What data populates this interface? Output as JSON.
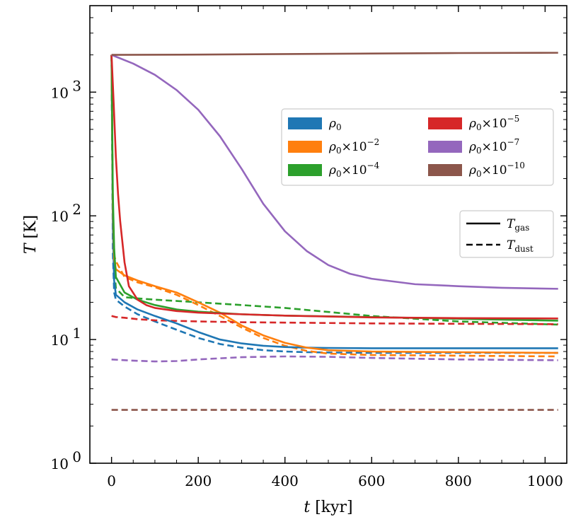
{
  "chart_data": {
    "type": "line",
    "title": "",
    "xlabel": "t",
    "xlabel_unit": "[kyr]",
    "ylabel": "T",
    "ylabel_unit": "[K]",
    "xlim": [
      -50,
      1050
    ],
    "ylim": [
      1,
      5000
    ],
    "yscale": "log",
    "x_ticks": [
      0,
      200,
      400,
      600,
      800,
      1000
    ],
    "x_tick_labels": [
      "0",
      "200",
      "400",
      "600",
      "800",
      "1000"
    ],
    "y_ticks": [
      1,
      10,
      100,
      1000
    ],
    "y_tick_labels": [
      {
        "base": "10",
        "exp": "0"
      },
      {
        "base": "10",
        "exp": "1"
      },
      {
        "base": "10",
        "exp": "2"
      },
      {
        "base": "10",
        "exp": "3"
      }
    ],
    "grid": false,
    "series": [
      {
        "name": "ρ0",
        "label_base": "ρ",
        "label_sub": "0",
        "label_mult": "",
        "label_exp": "",
        "color": "#1f77b4",
        "gas": [
          [
            0,
            2000
          ],
          [
            3,
            80
          ],
          [
            6,
            30
          ],
          [
            10,
            23
          ],
          [
            30,
            20
          ],
          [
            60,
            17.5
          ],
          [
            100,
            15.5
          ],
          [
            150,
            13.5
          ],
          [
            200,
            11.5
          ],
          [
            250,
            10
          ],
          [
            300,
            9.3
          ],
          [
            350,
            8.9
          ],
          [
            400,
            8.7
          ],
          [
            450,
            8.6
          ],
          [
            500,
            8.55
          ],
          [
            600,
            8.5
          ],
          [
            800,
            8.5
          ],
          [
            1030,
            8.5
          ]
        ],
        "dust": [
          [
            0,
            2000
          ],
          [
            3,
            50
          ],
          [
            6,
            24
          ],
          [
            10,
            21
          ],
          [
            30,
            18.5
          ],
          [
            60,
            16
          ],
          [
            100,
            14
          ],
          [
            150,
            12
          ],
          [
            200,
            10.3
          ],
          [
            250,
            9.2
          ],
          [
            300,
            8.6
          ],
          [
            350,
            8.2
          ],
          [
            400,
            8
          ],
          [
            450,
            7.9
          ],
          [
            500,
            7.85
          ],
          [
            600,
            7.8
          ],
          [
            800,
            7.8
          ],
          [
            1030,
            7.8
          ]
        ]
      },
      {
        "name": "ρ0×10^-2",
        "label_base": "ρ",
        "label_sub": "0",
        "label_mult": "×10",
        "label_exp": "−2",
        "color": "#ff7f0e",
        "gas": [
          [
            0,
            2000
          ],
          [
            3,
            120
          ],
          [
            6,
            45
          ],
          [
            10,
            37
          ],
          [
            30,
            33
          ],
          [
            60,
            30
          ],
          [
            100,
            27
          ],
          [
            150,
            24
          ],
          [
            200,
            20
          ],
          [
            250,
            16.5
          ],
          [
            300,
            13
          ],
          [
            350,
            10.8
          ],
          [
            400,
            9.4
          ],
          [
            450,
            8.6
          ],
          [
            500,
            8.2
          ],
          [
            600,
            8
          ],
          [
            800,
            7.9
          ],
          [
            1030,
            7.8
          ]
        ],
        "dust": [
          [
            0,
            2000
          ],
          [
            3,
            100
          ],
          [
            6,
            48
          ],
          [
            10,
            43
          ],
          [
            30,
            32
          ],
          [
            60,
            29
          ],
          [
            100,
            26.5
          ],
          [
            150,
            23
          ],
          [
            200,
            19
          ],
          [
            250,
            15.5
          ],
          [
            300,
            12.5
          ],
          [
            350,
            10.3
          ],
          [
            400,
            8.9
          ],
          [
            450,
            8.1
          ],
          [
            500,
            7.7
          ],
          [
            600,
            7.5
          ],
          [
            800,
            7.4
          ],
          [
            1030,
            7.3
          ]
        ]
      },
      {
        "name": "ρ0×10^-4",
        "label_base": "ρ",
        "label_sub": "0",
        "label_mult": "×10",
        "label_exp": "−4",
        "color": "#2ca02c",
        "gas": [
          [
            0,
            2000
          ],
          [
            3,
            150
          ],
          [
            6,
            55
          ],
          [
            10,
            32
          ],
          [
            30,
            24
          ],
          [
            60,
            21
          ],
          [
            100,
            19
          ],
          [
            150,
            17.5
          ],
          [
            200,
            16.8
          ],
          [
            300,
            16
          ],
          [
            400,
            15.6
          ],
          [
            600,
            15.2
          ],
          [
            800,
            14.7
          ],
          [
            1030,
            14.2
          ]
        ],
        "dust": [
          [
            0,
            2000
          ],
          [
            3,
            100
          ],
          [
            6,
            40
          ],
          [
            10,
            26
          ],
          [
            30,
            22
          ],
          [
            60,
            21.5
          ],
          [
            100,
            21
          ],
          [
            150,
            20.5
          ],
          [
            200,
            20
          ],
          [
            300,
            19
          ],
          [
            400,
            18
          ],
          [
            600,
            15.5
          ],
          [
            800,
            14
          ],
          [
            1030,
            13.2
          ]
        ]
      },
      {
        "name": "ρ0×10^-5",
        "label_base": "ρ",
        "label_sub": "0",
        "label_mult": "×10",
        "label_exp": "−5",
        "color": "#d62728",
        "gas": [
          [
            0,
            2000
          ],
          [
            5,
            800
          ],
          [
            10,
            300
          ],
          [
            15,
            150
          ],
          [
            20,
            90
          ],
          [
            30,
            42
          ],
          [
            40,
            27
          ],
          [
            60,
            21
          ],
          [
            80,
            19
          ],
          [
            100,
            18
          ],
          [
            150,
            17
          ],
          [
            200,
            16.5
          ],
          [
            300,
            16
          ],
          [
            400,
            15.6
          ],
          [
            600,
            15.1
          ],
          [
            800,
            14.9
          ],
          [
            1030,
            14.8
          ]
        ],
        "dust": [
          [
            0,
            15.5
          ],
          [
            10,
            15.2
          ],
          [
            30,
            15
          ],
          [
            60,
            14.6
          ],
          [
            100,
            14.3
          ],
          [
            200,
            14
          ],
          [
            300,
            13.8
          ],
          [
            400,
            13.7
          ],
          [
            600,
            13.5
          ],
          [
            800,
            13.4
          ],
          [
            1030,
            13.3
          ]
        ]
      },
      {
        "name": "ρ0×10^-7",
        "label_base": "ρ",
        "label_sub": "0",
        "label_mult": "×10",
        "label_exp": "−7",
        "color": "#9467bd",
        "gas": [
          [
            0,
            2000
          ],
          [
            50,
            1700
          ],
          [
            100,
            1380
          ],
          [
            150,
            1040
          ],
          [
            200,
            720
          ],
          [
            250,
            440
          ],
          [
            300,
            240
          ],
          [
            350,
            125
          ],
          [
            400,
            75
          ],
          [
            450,
            52
          ],
          [
            500,
            40
          ],
          [
            550,
            34
          ],
          [
            600,
            31
          ],
          [
            700,
            28
          ],
          [
            800,
            27
          ],
          [
            900,
            26.2
          ],
          [
            1030,
            25.7
          ]
        ],
        "dust": [
          [
            0,
            6.9
          ],
          [
            50,
            6.75
          ],
          [
            100,
            6.65
          ],
          [
            150,
            6.7
          ],
          [
            200,
            6.9
          ],
          [
            300,
            7.2
          ],
          [
            400,
            7.3
          ],
          [
            500,
            7.25
          ],
          [
            600,
            7.1
          ],
          [
            800,
            6.9
          ],
          [
            1030,
            6.8
          ]
        ]
      },
      {
        "name": "ρ0×10^-10",
        "label_base": "ρ",
        "label_sub": "0",
        "label_mult": "×10",
        "label_exp": "−10",
        "color": "#8c564b",
        "gas": [
          [
            0,
            2000
          ],
          [
            200,
            2010
          ],
          [
            400,
            2030
          ],
          [
            600,
            2050
          ],
          [
            800,
            2070
          ],
          [
            1030,
            2080
          ]
        ],
        "dust": [
          [
            0,
            2.7
          ],
          [
            200,
            2.7
          ],
          [
            400,
            2.7
          ],
          [
            600,
            2.7
          ],
          [
            800,
            2.7
          ],
          [
            1030,
            2.7
          ]
        ]
      }
    ],
    "legend_style": [
      {
        "label_base": "T",
        "label_sub": "gas",
        "linestyle": "solid"
      },
      {
        "label_base": "T",
        "label_sub": "dust",
        "linestyle": "dashed"
      }
    ],
    "legend_position": "upper-right"
  }
}
